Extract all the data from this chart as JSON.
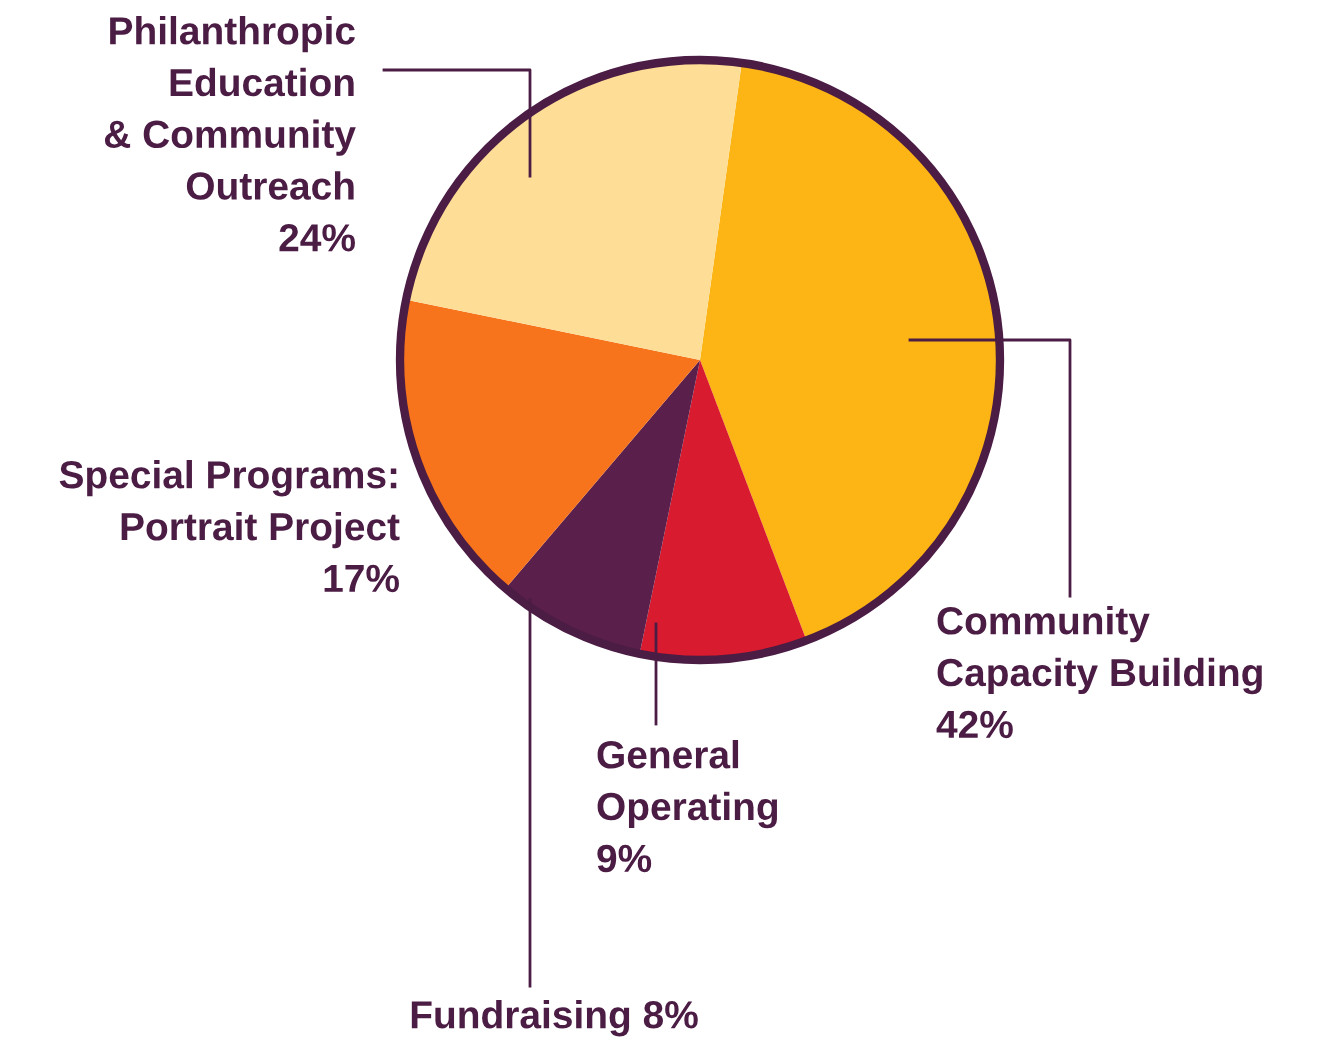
{
  "chart_data": {
    "type": "pie",
    "categories": [
      "Community\nCapacity Building",
      "General\nOperating",
      "Fundraising",
      "Special Programs:\nPortrait Project",
      "Philanthropic\nEducation\n& Community\nOutreach"
    ],
    "values": [
      42,
      9,
      8,
      17,
      24
    ],
    "value_labels": [
      "42%",
      "9%",
      "8%",
      "17%",
      "24%"
    ],
    "colors": [
      "#fdb515",
      "#d81b2e",
      "#5a1f4b",
      "#f7741c",
      "#fede97"
    ]
  }
}
